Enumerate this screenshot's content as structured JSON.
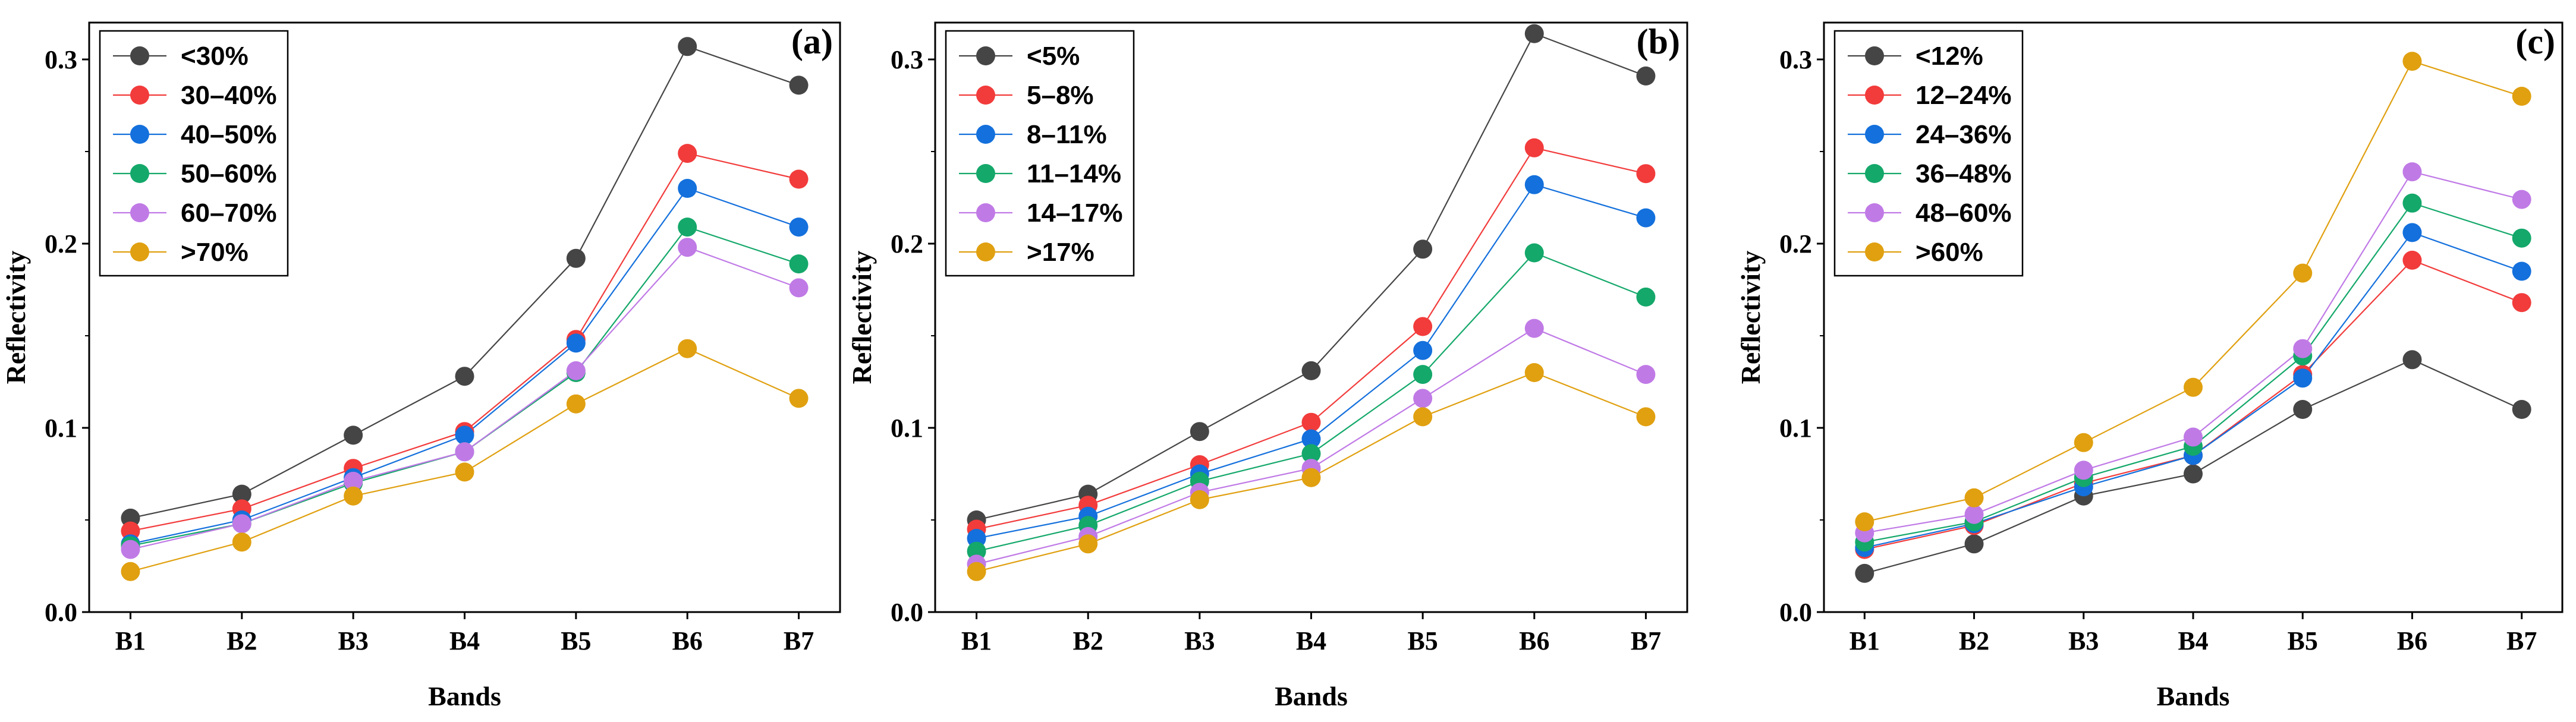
{
  "colors": {
    "s1": "#454545",
    "s2": "#f23b3b",
    "s3": "#1470dc",
    "s4": "#14a86a",
    "s5": "#c07ae6",
    "s6": "#e0a010"
  },
  "chart_data": [
    {
      "type": "line",
      "panel": "(a)",
      "xlabel": "Bands",
      "ylabel": "Reflectivity",
      "categories": [
        "B1",
        "B2",
        "B3",
        "B4",
        "B5",
        "B6",
        "B7"
      ],
      "ylim": [
        0,
        0.32
      ],
      "yticks": [
        0.0,
        0.1,
        0.2,
        0.3
      ],
      "ytick_labels": [
        "0.0",
        "0.1",
        "0.2",
        "0.3"
      ],
      "legend_position": "top-left",
      "series": [
        {
          "name": "<30%",
          "color": "#454545",
          "values": [
            0.051,
            0.064,
            0.096,
            0.128,
            0.192,
            0.307,
            0.286
          ]
        },
        {
          "name": "30–40%",
          "color": "#f23b3b",
          "values": [
            0.044,
            0.056,
            0.078,
            0.098,
            0.148,
            0.249,
            0.235
          ]
        },
        {
          "name": "40–50%",
          "color": "#1470dc",
          "values": [
            0.037,
            0.05,
            0.073,
            0.096,
            0.146,
            0.23,
            0.209
          ]
        },
        {
          "name": "50–60%",
          "color": "#14a86a",
          "values": [
            0.036,
            0.048,
            0.07,
            0.087,
            0.13,
            0.209,
            0.189
          ]
        },
        {
          "name": "60–70%",
          "color": "#c07ae6",
          "values": [
            0.034,
            0.048,
            0.071,
            0.087,
            0.131,
            0.198,
            0.176
          ]
        },
        {
          "name": ">70%",
          "color": "#e0a010",
          "values": [
            0.022,
            0.038,
            0.063,
            0.076,
            0.113,
            0.143,
            0.116
          ]
        }
      ]
    },
    {
      "type": "line",
      "panel": "(b)",
      "xlabel": "Bands",
      "ylabel": "Reflectivity",
      "categories": [
        "B1",
        "B2",
        "B3",
        "B4",
        "B5",
        "B6",
        "B7"
      ],
      "ylim": [
        0,
        0.32
      ],
      "yticks": [
        0.0,
        0.1,
        0.2,
        0.3
      ],
      "ytick_labels": [
        "0.0",
        "0.1",
        "0.2",
        "0.3"
      ],
      "legend_position": "top-left",
      "series": [
        {
          "name": "<5%",
          "color": "#454545",
          "values": [
            0.05,
            0.064,
            0.098,
            0.131,
            0.197,
            0.314,
            0.291
          ]
        },
        {
          "name": "5–8%",
          "color": "#f23b3b",
          "values": [
            0.045,
            0.058,
            0.08,
            0.103,
            0.155,
            0.252,
            0.238
          ]
        },
        {
          "name": "8–11%",
          "color": "#1470dc",
          "values": [
            0.04,
            0.052,
            0.075,
            0.094,
            0.142,
            0.232,
            0.214
          ]
        },
        {
          "name": "11–14%",
          "color": "#14a86a",
          "values": [
            0.033,
            0.047,
            0.071,
            0.086,
            0.129,
            0.195,
            0.171
          ]
        },
        {
          "name": "14–17%",
          "color": "#c07ae6",
          "values": [
            0.026,
            0.041,
            0.065,
            0.078,
            0.116,
            0.154,
            0.129
          ]
        },
        {
          "name": ">17%",
          "color": "#e0a010",
          "values": [
            0.022,
            0.037,
            0.061,
            0.073,
            0.106,
            0.13,
            0.106
          ]
        }
      ]
    },
    {
      "type": "line",
      "panel": "(c)",
      "xlabel": "Bands",
      "ylabel": "Reflectivity",
      "categories": [
        "B1",
        "B2",
        "B3",
        "B4",
        "B5",
        "B6",
        "B7"
      ],
      "ylim": [
        0,
        0.32
      ],
      "yticks": [
        0.0,
        0.1,
        0.2,
        0.3
      ],
      "ytick_labels": [
        "0.0",
        "0.1",
        "0.2",
        "0.3"
      ],
      "legend_position": "top-left",
      "series": [
        {
          "name": "<12%",
          "color": "#454545",
          "values": [
            0.021,
            0.037,
            0.063,
            0.075,
            0.11,
            0.137,
            0.11
          ]
        },
        {
          "name": "12–24%",
          "color": "#f23b3b",
          "values": [
            0.034,
            0.047,
            0.07,
            0.085,
            0.129,
            0.191,
            0.168
          ]
        },
        {
          "name": "24–36%",
          "color": "#1470dc",
          "values": [
            0.035,
            0.048,
            0.068,
            0.085,
            0.127,
            0.206,
            0.185
          ]
        },
        {
          "name": "36–48%",
          "color": "#14a86a",
          "values": [
            0.038,
            0.049,
            0.073,
            0.09,
            0.139,
            0.222,
            0.203
          ]
        },
        {
          "name": "48–60%",
          "color": "#c07ae6",
          "values": [
            0.043,
            0.053,
            0.077,
            0.095,
            0.143,
            0.239,
            0.224
          ]
        },
        {
          "name": ">60%",
          "color": "#e0a010",
          "values": [
            0.049,
            0.062,
            0.092,
            0.122,
            0.184,
            0.299,
            0.28
          ]
        }
      ]
    }
  ]
}
